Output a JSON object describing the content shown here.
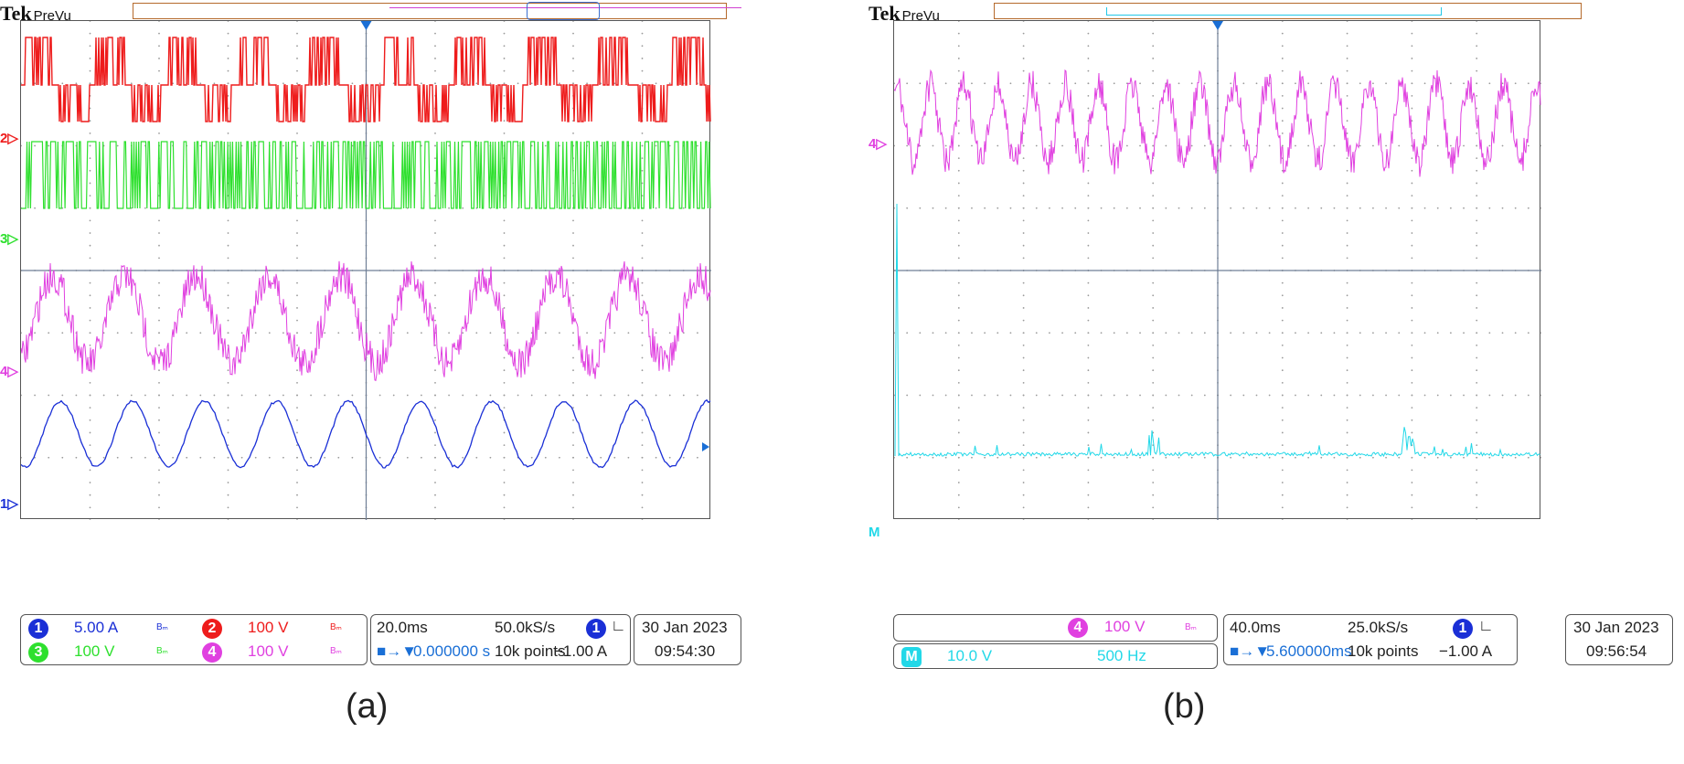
{
  "scope_a": {
    "brand": "Tek",
    "mode": "PreVu",
    "channels": [
      {
        "num": "1",
        "scale": "5.00 A",
        "color": "#1a2fd6",
        "bw": "Bₘ"
      },
      {
        "num": "2",
        "scale": "100 V",
        "color": "#ee1c1c",
        "bw": "Bₘ"
      },
      {
        "num": "3",
        "scale": "100 V",
        "color": "#2ee02e",
        "bw": "Bₘ"
      },
      {
        "num": "4",
        "scale": "100 V",
        "color": "#e040e0",
        "bw": "Bₘ"
      }
    ],
    "timebase": "20.0ms",
    "sample_rate": "50.0kS/s",
    "trigger_pos": "0.000000 s",
    "record": "10k points",
    "trigger_source": "1",
    "trigger_level": "−1.00 A",
    "date": "30 Jan  2023",
    "time": "09:54:30",
    "caption": "(a)"
  },
  "scope_b": {
    "brand": "Tek",
    "mode": "PreVu",
    "ch4_num": "4",
    "ch4_scale": "100 V",
    "ch4_color": "#e040e0",
    "math_label": "M",
    "math_scale": "10.0 V",
    "math_freq": "500 Hz",
    "math_color": "#22d8e8",
    "timebase": "40.0ms",
    "sample_rate": "25.0kS/s",
    "trigger_pos": "5.600000ms",
    "record": "10k points",
    "trigger_source": "1",
    "trigger_level": "−1.00 A",
    "date": "30 Jan  2023",
    "time": "09:56:54",
    "caption": "(b)"
  }
}
